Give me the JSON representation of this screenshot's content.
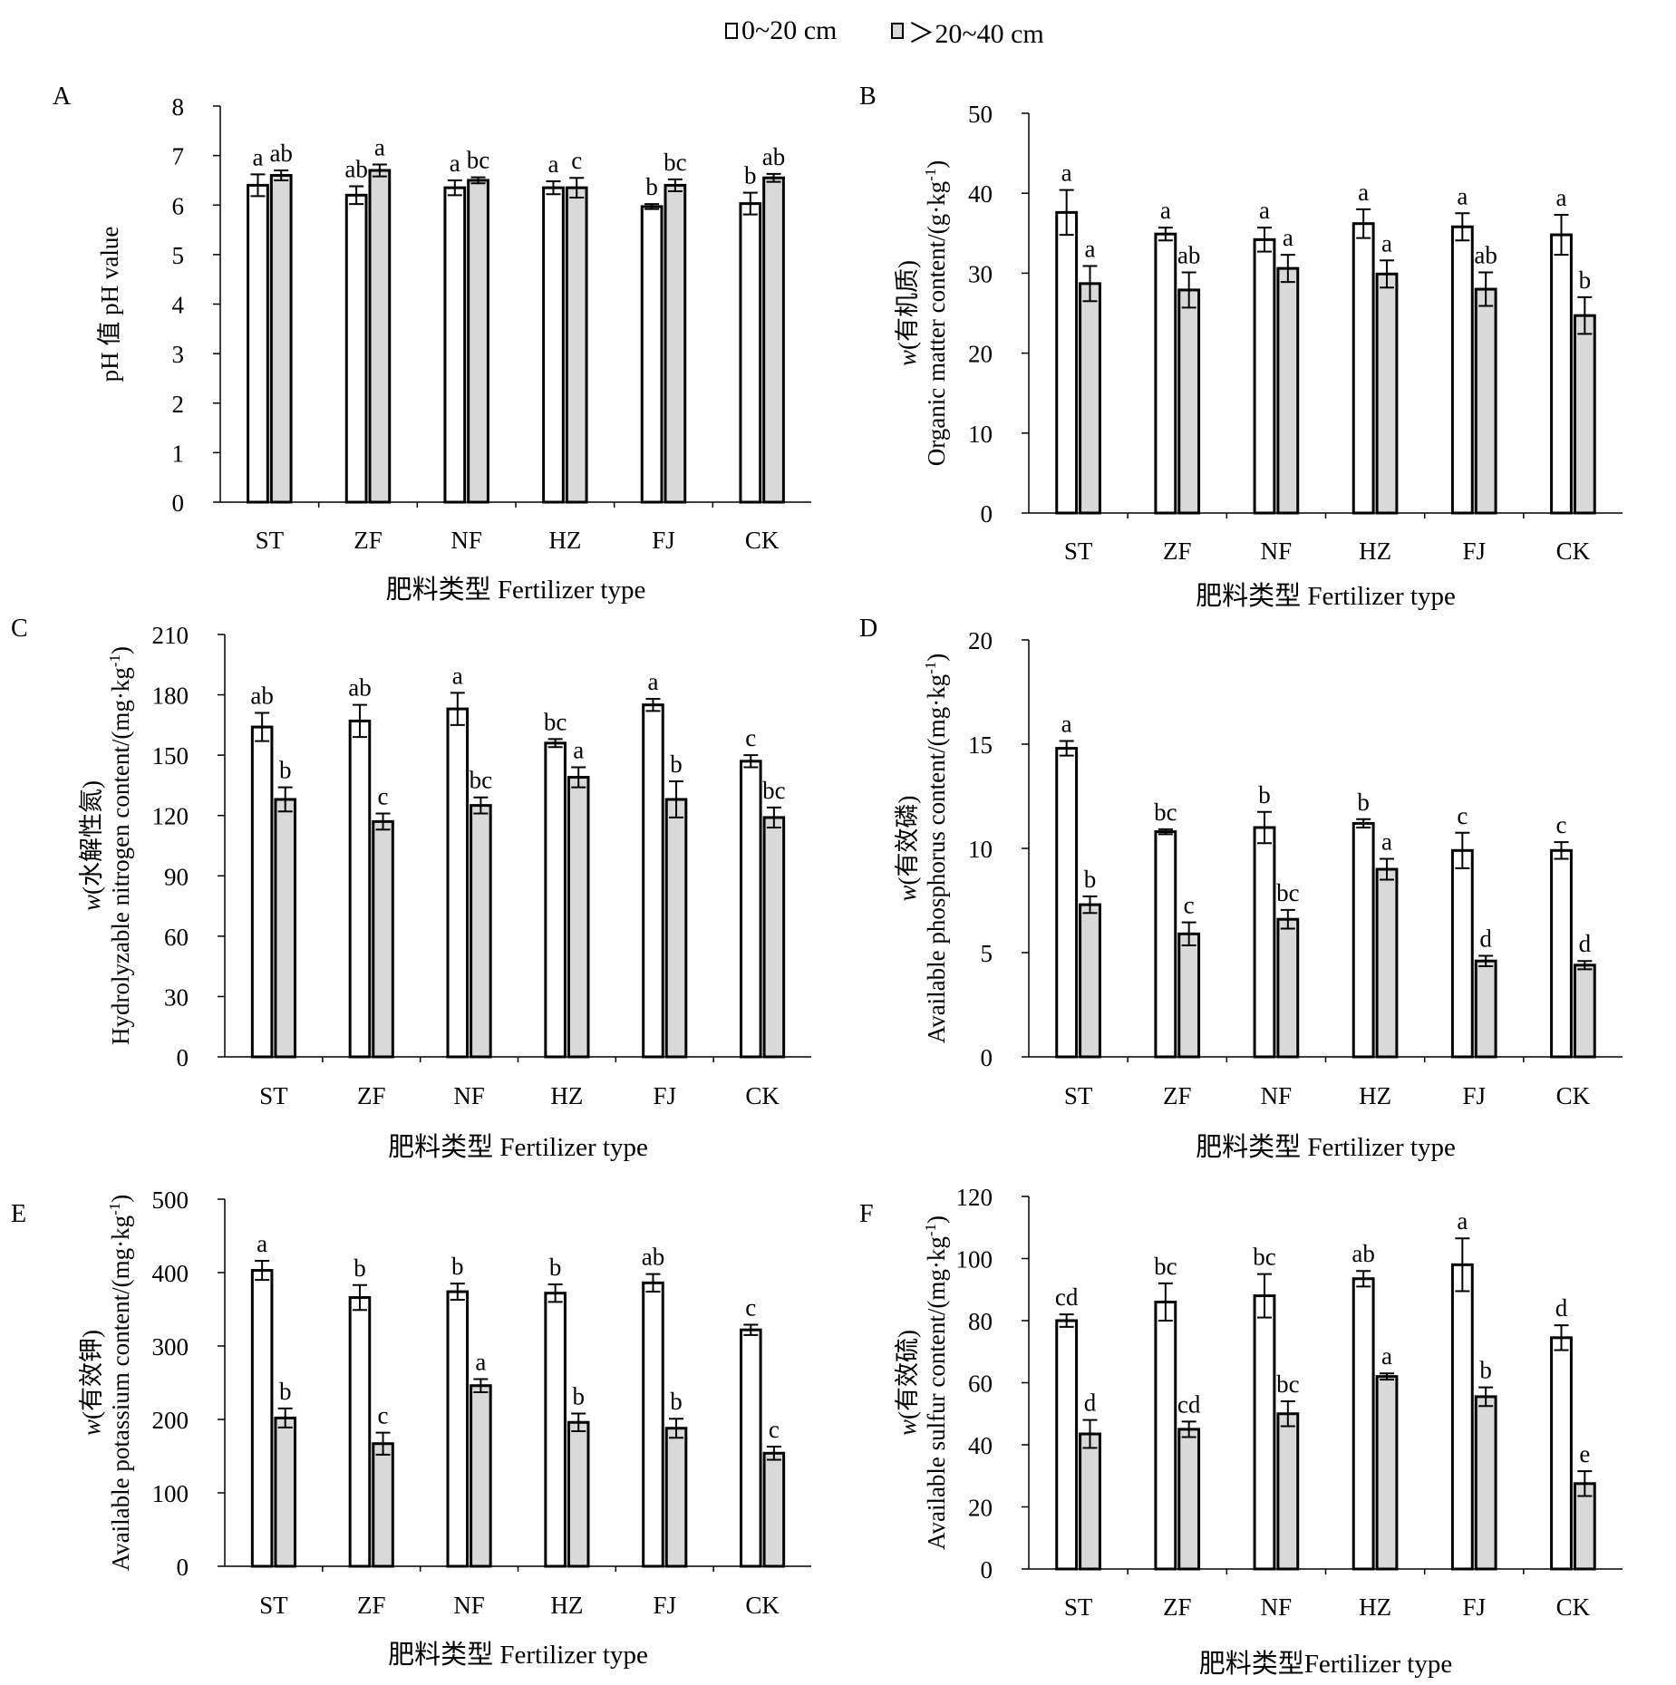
{
  "legend": {
    "series": [
      {
        "name": "0~20 cm",
        "fill": "#ffffff"
      },
      {
        "name": "＞20~40 cm",
        "fill": "#d9d9d9"
      }
    ]
  },
  "colors": {
    "series_a": "#ffffff",
    "series_b": "#d9d9d9",
    "stroke": "#000000"
  },
  "chart_data": [
    {
      "type": "bar",
      "panel": "A",
      "categories": [
        "ST",
        "ZF",
        "NF",
        "HZ",
        "FJ",
        "CK"
      ],
      "ylabel": "pH 值 pH value",
      "ylabel_prefix": "",
      "ylabel_unit": "",
      "xlabel": "肥料类型 Fertilizer type",
      "ylim": [
        0,
        8
      ],
      "yticks": [
        0,
        1,
        2,
        3,
        4,
        5,
        6,
        7,
        8
      ],
      "series": [
        {
          "name": "0~20 cm",
          "values": [
            6.4,
            6.2,
            6.35,
            6.35,
            5.97,
            6.03
          ],
          "errors": [
            0.22,
            0.18,
            0.15,
            0.13,
            0.05,
            0.22
          ],
          "letters": [
            "a",
            "ab",
            "a",
            "a",
            "b",
            "b"
          ]
        },
        {
          "name": "＞20~40 cm",
          "values": [
            6.6,
            6.7,
            6.5,
            6.35,
            6.4,
            6.55
          ],
          "errors": [
            0.1,
            0.12,
            0.06,
            0.2,
            0.12,
            0.08
          ],
          "letters": [
            "ab",
            "a",
            "bc",
            "c",
            "bc",
            "ab"
          ]
        }
      ]
    },
    {
      "type": "bar",
      "panel": "B",
      "categories": [
        "ST",
        "ZF",
        "NF",
        "HZ",
        "FJ",
        "CK"
      ],
      "ylabel": "Organic matter content/",
      "ylabel_prefix": "w",
      "ylabel_cn": "(有机质)",
      "ylabel_unit": "(g·kg",
      "xlabel": "肥料类型 Fertilizer type",
      "ylim": [
        0,
        50
      ],
      "yticks": [
        0,
        10,
        20,
        30,
        40,
        50
      ],
      "series": [
        {
          "name": "0~20 cm",
          "values": [
            37.6,
            34.9,
            34.2,
            36.2,
            35.8,
            34.8
          ],
          "errors": [
            2.8,
            0.8,
            1.5,
            1.8,
            1.7,
            2.5
          ],
          "letters": [
            "a",
            "a",
            "a",
            "a",
            "a",
            "a"
          ]
        },
        {
          "name": "＞20~40 cm",
          "values": [
            28.7,
            27.9,
            30.6,
            29.9,
            28.0,
            24.7
          ],
          "errors": [
            2.2,
            2.2,
            1.7,
            1.7,
            2.1,
            2.3
          ],
          "letters": [
            "a",
            "ab",
            "a",
            "a",
            "ab",
            "b"
          ]
        }
      ]
    },
    {
      "type": "bar",
      "panel": "C",
      "categories": [
        "ST",
        "ZF",
        "NF",
        "HZ",
        "FJ",
        "CK"
      ],
      "ylabel": "Hydrolyzable nitrogen content/",
      "ylabel_prefix": "w",
      "ylabel_cn": "(水解性氮)",
      "ylabel_unit": "(mg·kg",
      "xlabel": "肥料类型 Fertilizer type",
      "ylim": [
        0,
        210
      ],
      "yticks": [
        0,
        30,
        60,
        90,
        120,
        150,
        180,
        210
      ],
      "series": [
        {
          "name": "0~20 cm",
          "values": [
            164,
            167,
            173,
            156,
            175,
            147
          ],
          "errors": [
            7,
            8,
            8,
            2,
            3,
            3
          ],
          "letters": [
            "ab",
            "ab",
            "a",
            "bc",
            "a",
            "c"
          ]
        },
        {
          "name": "＞20~40 cm",
          "values": [
            128,
            117,
            125,
            139,
            128,
            119
          ],
          "errors": [
            6,
            4,
            4,
            5,
            9,
            5
          ],
          "letters": [
            "b",
            "c",
            "bc",
            "a",
            "b",
            "bc"
          ]
        }
      ]
    },
    {
      "type": "bar",
      "panel": "D",
      "categories": [
        "ST",
        "ZF",
        "NF",
        "HZ",
        "FJ",
        "CK"
      ],
      "ylabel": "Available phosphorus content/",
      "ylabel_prefix": "w",
      "ylabel_cn": "(有效磷)",
      "ylabel_unit": "(mg·kg",
      "xlabel": "肥料类型 Fertilizer type",
      "ylim": [
        0,
        20
      ],
      "yticks": [
        0,
        5,
        10,
        15,
        20
      ],
      "series": [
        {
          "name": "0~20 cm",
          "values": [
            14.8,
            10.8,
            11.0,
            11.2,
            9.9,
            9.9
          ],
          "errors": [
            0.35,
            0.12,
            0.75,
            0.2,
            0.85,
            0.4
          ],
          "letters": [
            "a",
            "bc",
            "b",
            "b",
            "c",
            "c"
          ]
        },
        {
          "name": "＞20~40 cm",
          "values": [
            7.3,
            5.9,
            6.6,
            9.0,
            4.6,
            4.4
          ],
          "errors": [
            0.4,
            0.55,
            0.45,
            0.5,
            0.25,
            0.2
          ],
          "letters": [
            "b",
            "c",
            "bc",
            "a",
            "d",
            "d"
          ]
        }
      ]
    },
    {
      "type": "bar",
      "panel": "E",
      "categories": [
        "ST",
        "ZF",
        "NF",
        "HZ",
        "FJ",
        "CK"
      ],
      "ylabel": "Available potassium content/",
      "ylabel_prefix": "w",
      "ylabel_cn": "(有效钾)",
      "ylabel_unit": "(mg·kg",
      "xlabel": "肥料类型 Fertilizer type",
      "ylim": [
        0,
        500
      ],
      "yticks": [
        0,
        100,
        200,
        300,
        400,
        500
      ],
      "series": [
        {
          "name": "0~20 cm",
          "values": [
            403,
            366,
            374,
            372,
            386,
            322
          ],
          "errors": [
            13,
            17,
            11,
            12,
            12,
            7
          ],
          "letters": [
            "a",
            "b",
            "b",
            "b",
            "ab",
            "c"
          ]
        },
        {
          "name": "＞20~40 cm",
          "values": [
            202,
            167,
            246,
            196,
            188,
            154
          ],
          "errors": [
            13,
            15,
            9,
            12,
            13,
            9
          ],
          "letters": [
            "b",
            "c",
            "a",
            "b",
            "b",
            "c"
          ]
        }
      ]
    },
    {
      "type": "bar",
      "panel": "F",
      "categories": [
        "ST",
        "ZF",
        "NF",
        "HZ",
        "FJ",
        "CK"
      ],
      "ylabel": "Available sulfur content/",
      "ylabel_prefix": "w",
      "ylabel_cn": "(有效硫)",
      "ylabel_unit": "(mg·kg",
      "xlabel": "肥料类型Fertilizer type",
      "ylim": [
        0,
        120
      ],
      "yticks": [
        0,
        20,
        40,
        60,
        80,
        100,
        120
      ],
      "series": [
        {
          "name": "0~20 cm",
          "values": [
            80,
            86,
            88,
            93.5,
            98,
            74.5
          ],
          "errors": [
            2,
            6,
            7,
            2.5,
            8.5,
            4
          ],
          "letters": [
            "cd",
            "bc",
            "bc",
            "ab",
            "a",
            "d"
          ]
        },
        {
          "name": "＞20~40 cm",
          "values": [
            43.5,
            45,
            50,
            62,
            55.5,
            27.5
          ],
          "errors": [
            4.5,
            2.5,
            4,
            1,
            3,
            4
          ],
          "letters": [
            "d",
            "cd",
            "bc",
            "a",
            "b",
            "e"
          ]
        }
      ]
    }
  ]
}
